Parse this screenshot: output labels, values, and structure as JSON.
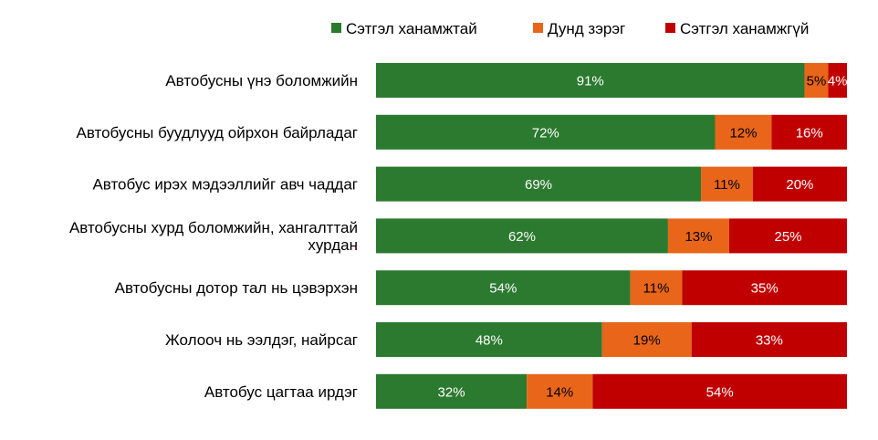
{
  "chart_data": {
    "type": "bar",
    "orientation": "horizontal",
    "stacked": "percent",
    "title": "",
    "xlabel": "",
    "ylabel": "",
    "xlim": [
      0,
      100
    ],
    "grid": false,
    "legend_position": "top-right",
    "categories": [
      "Автобусны үнэ боломжийн",
      "Автобусны буудлууд ойрхон байрладаг",
      "Автобус ирэх мэдээллийг авч чаддаг",
      "Автобусны хурд боломжийн, хангалттай хурдан",
      "Автобусны дотор тал нь цэвэрхэн",
      "Жолооч нь ээлдэг, найрсаг",
      "Автобус цагтаа ирдэг"
    ],
    "category_lines": [
      [
        "Автобусны үнэ боломжийн"
      ],
      [
        "Автобусны буудлууд ойрхон байрладаг"
      ],
      [
        "Автобус ирэх мэдээллийг авч чаддаг"
      ],
      [
        "Автобусны хурд боломжийн, хангалттай",
        "хурдан"
      ],
      [
        "Автобусны дотор тал нь цэвэрхэн"
      ],
      [
        "Жолооч нь ээлдэг, найрсаг"
      ],
      [
        "Автобус цагтаа ирдэг"
      ]
    ],
    "series": [
      {
        "name": "Сэтгэл ханамжтай",
        "color": "#2b7a2f",
        "label_color": "#ffffff",
        "values": [
          91,
          72,
          69,
          62,
          54,
          48,
          32
        ]
      },
      {
        "name": "Дунд зэрэг",
        "color": "#e8651a",
        "label_color": "#000000",
        "values": [
          5,
          12,
          11,
          13,
          11,
          19,
          14
        ]
      },
      {
        "name": "Сэтгэл ханамжгүй",
        "color": "#c00000",
        "label_color": "#ffffff",
        "values": [
          4,
          16,
          20,
          25,
          35,
          33,
          54
        ]
      }
    ],
    "value_suffix": "%"
  }
}
